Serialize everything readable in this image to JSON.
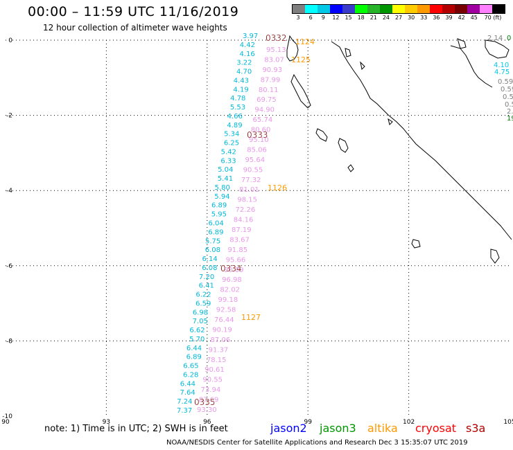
{
  "title": "00:00 – 11:59 UTC 11/16/2019",
  "subtitle": "12 hour collection of altimeter wave heights",
  "colorbar": {
    "labels": [
      "3",
      "6",
      "9",
      "12",
      "15",
      "18",
      "21",
      "24",
      "27",
      "30",
      "33",
      "36",
      "39",
      "42",
      "45",
      "70 (ft)"
    ],
    "colors": [
      "#7f7f7f",
      "#00ffff",
      "#00c8e6",
      "#0000ff",
      "#3a3acb",
      "#00ff00",
      "#28b428",
      "#009600",
      "#ffff00",
      "#ffcc00",
      "#ff9900",
      "#ff0000",
      "#b40000",
      "#780000",
      "#a000a0",
      "#ff80ff",
      "#000000"
    ]
  },
  "axes": {
    "x_ticks": [
      "90",
      "93",
      "96",
      "99",
      "102",
      "105"
    ],
    "y_ticks": [
      "0",
      "-2",
      "-4",
      "-6",
      "-8",
      "-10"
    ]
  },
  "track_cyan": [
    "3.97",
    "4.42",
    "4.16",
    "3.22",
    "4.70",
    "4.43",
    "4.19",
    "4.78",
    "5.53",
    "4.66",
    "4.89",
    "5.34",
    "6.25",
    "5.42",
    "6.33",
    "5.04",
    "5.41",
    "5.80",
    "5.94",
    "6.89",
    "5.95",
    "6.04",
    "6.89",
    "5.75",
    "6.08",
    "6.14",
    "6.08",
    "7.20",
    "6.41",
    "6.22",
    "6.59",
    "6.98",
    "7.05",
    "6.62",
    "5.70",
    "6.44",
    "6.89",
    "6.65",
    "6.28",
    "6.44",
    "7.64",
    "7.24",
    "7.37"
  ],
  "track_pink": [
    "95.13",
    "83.07",
    "90.93",
    "87.99",
    "80.11",
    "69.75",
    "94.90",
    "65.74",
    "80.60",
    "95.10",
    "85.06",
    "95.64",
    "90.55",
    "77.32",
    "81.01",
    "98.15",
    "72.26",
    "84.16",
    "87.19",
    "83.67",
    "91.85",
    "95.66",
    "90.09",
    "96.98",
    "82.02",
    "99.18",
    "92.58",
    "76.44",
    "90.19",
    "87.06",
    "91.37",
    "78.15",
    "90.61",
    "90.55",
    "73.94",
    "87.69",
    "93.30"
  ],
  "time_labels_dark": [
    "0332",
    "0333",
    "0334",
    "0335"
  ],
  "time_labels_orange": [
    "1124",
    "1125",
    "1126",
    "1127"
  ],
  "right_edge_values": [
    {
      "text": "2.14",
      "color": "#7f7f7f"
    },
    {
      "text": "0",
      "color": "#008000"
    },
    {
      "text": "4.10",
      "color": "#00c8e6"
    },
    {
      "text": "4.75",
      "color": "#00c8e6"
    },
    {
      "text": "0.59",
      "color": "#7f7f7f"
    },
    {
      "text": "0.59",
      "color": "#7f7f7f"
    },
    {
      "text": "0.5",
      "color": "#7f7f7f"
    },
    {
      "text": "0.5",
      "color": "#7f7f7f"
    },
    {
      "text": "2.",
      "color": "#7f7f7f"
    },
    {
      "text": "19",
      "color": "#008000"
    }
  ],
  "footer": {
    "note": "note: 1) Time is in UTC; 2) SWH is in feet",
    "satellites": [
      {
        "name": "jason2",
        "color": "#0000ff"
      },
      {
        "name": "jason3",
        "color": "#009600"
      },
      {
        "name": "altika",
        "color": "#ff9900"
      },
      {
        "name": "cryosat",
        "color": "#ff0000"
      },
      {
        "name": "s3a",
        "color": "#b40000"
      }
    ],
    "credit": "NOAA/NESDIS Center for Satellite Applications and Research   Dec  3 15:35:07 UTC 2019"
  }
}
